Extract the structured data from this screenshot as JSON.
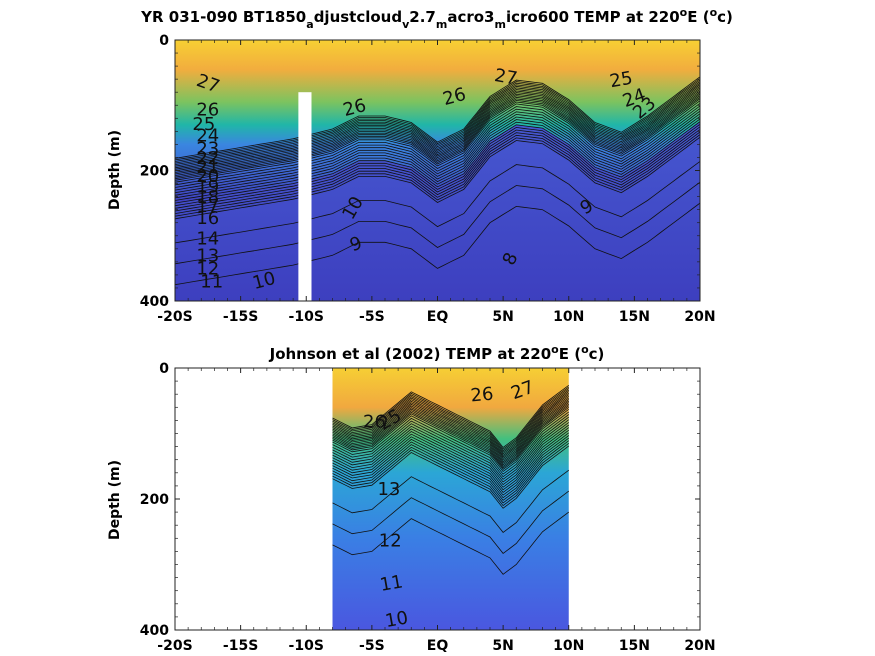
{
  "chart_data": [
    {
      "type": "contour",
      "title_parts": [
        "YR 031-090 BT1850",
        "a",
        "djustcloud",
        "v",
        "2.7",
        "m",
        "acro3",
        "m",
        "icro600 TEMP at 220",
        "o",
        "E (",
        "o",
        "c)"
      ],
      "ylabel": "Depth (m)",
      "x_ticks": [
        "-20S",
        "-15S",
        "-10S",
        "-5S",
        "EQ",
        "5N",
        "10N",
        "15N",
        "20N"
      ],
      "y_ticks": [
        "0",
        "200",
        "400"
      ],
      "xlim": [
        -20,
        20
      ],
      "ylim": [
        0,
        400
      ],
      "thermocline_lat": [
        -20,
        -17,
        -14,
        -11,
        -8,
        -6,
        -4,
        -2,
        0,
        2,
        4,
        6,
        8,
        10,
        12,
        14,
        16,
        18,
        20
      ],
      "thermocline_depth": [
        215,
        205,
        195,
        185,
        170,
        150,
        150,
        160,
        190,
        170,
        120,
        95,
        100,
        125,
        160,
        175,
        150,
        120,
        90
      ],
      "mask": [
        {
          "lat_from": -10.6,
          "lat_to": -9.6,
          "depth_from": 80,
          "depth_to": 400
        }
      ],
      "contour_labels": [
        {
          "v": "27",
          "lat": -17.5,
          "d": 68,
          "rot": 20
        },
        {
          "v": "26",
          "lat": -17.5,
          "d": 108,
          "rot": 0
        },
        {
          "v": "25",
          "lat": -17.8,
          "d": 130,
          "rot": 0
        },
        {
          "v": "24",
          "lat": -17.5,
          "d": 148,
          "rot": 0
        },
        {
          "v": "23",
          "lat": -17.5,
          "d": 168,
          "rot": 0
        },
        {
          "v": "22",
          "lat": -17.5,
          "d": 182,
          "rot": 0
        },
        {
          "v": "21",
          "lat": -17.5,
          "d": 196,
          "rot": 0
        },
        {
          "v": "20",
          "lat": -17.5,
          "d": 210,
          "rot": 0
        },
        {
          "v": "19",
          "lat": -17.5,
          "d": 226,
          "rot": 0
        },
        {
          "v": "18",
          "lat": -17.5,
          "d": 242,
          "rot": 0
        },
        {
          "v": "17",
          "lat": -17.5,
          "d": 256,
          "rot": 0
        },
        {
          "v": "16",
          "lat": -17.5,
          "d": 274,
          "rot": 0
        },
        {
          "v": "14",
          "lat": -17.5,
          "d": 306,
          "rot": 0
        },
        {
          "v": "13",
          "lat": -17.5,
          "d": 332,
          "rot": 0
        },
        {
          "v": "12",
          "lat": -17.5,
          "d": 352,
          "rot": 0
        },
        {
          "v": "11",
          "lat": -17.2,
          "d": 372,
          "rot": 0
        },
        {
          "v": "10",
          "lat": -13.2,
          "d": 370,
          "rot": -15
        },
        {
          "v": "26",
          "lat": -6.3,
          "d": 105,
          "rot": -15
        },
        {
          "v": "10",
          "lat": -6.4,
          "d": 258,
          "rot": -60
        },
        {
          "v": "9",
          "lat": -6.2,
          "d": 314,
          "rot": -20
        },
        {
          "v": "26",
          "lat": 1.3,
          "d": 88,
          "rot": -15
        },
        {
          "v": "27",
          "lat": 5.2,
          "d": 58,
          "rot": 10
        },
        {
          "v": "25",
          "lat": 14.0,
          "d": 62,
          "rot": -10
        },
        {
          "v": "24",
          "lat": 15.0,
          "d": 90,
          "rot": -20
        },
        {
          "v": "23",
          "lat": 15.8,
          "d": 105,
          "rot": -40
        },
        {
          "v": "9",
          "lat": 11.4,
          "d": 257,
          "rot": -30
        },
        {
          "v": "8",
          "lat": 5.6,
          "d": 336,
          "rot": -65
        }
      ]
    },
    {
      "type": "contour",
      "title_parts": [
        "Johnson et al (2002) TEMP at 220",
        "o",
        "E (",
        "o",
        "c)"
      ],
      "ylabel": "Depth (m)",
      "x_ticks": [
        "-20S",
        "-15S",
        "-10S",
        "-5S",
        "EQ",
        "5N",
        "10N",
        "15N",
        "20N"
      ],
      "y_ticks": [
        "0",
        "200",
        "400"
      ],
      "xlim": [
        -20,
        20
      ],
      "ylim": [
        0,
        400
      ],
      "data_extent": [
        -8,
        10
      ],
      "thermocline_lat": [
        -8,
        -6.5,
        -5,
        -3.5,
        -2,
        0,
        2,
        4,
        5,
        6,
        8,
        10
      ],
      "thermocline_depth": [
        110,
        125,
        120,
        95,
        70,
        90,
        110,
        130,
        155,
        140,
        90,
        60
      ],
      "contour_labels": [
        {
          "v": "26",
          "lat": -4.8,
          "d": 83,
          "rot": 0
        },
        {
          "v": "25",
          "lat": -3.6,
          "d": 80,
          "rot": -30
        },
        {
          "v": "13",
          "lat": -3.7,
          "d": 186,
          "rot": 0
        },
        {
          "v": "12",
          "lat": -3.6,
          "d": 265,
          "rot": 0
        },
        {
          "v": "11",
          "lat": -3.5,
          "d": 330,
          "rot": -10
        },
        {
          "v": "10",
          "lat": -3.1,
          "d": 385,
          "rot": -10
        },
        {
          "v": "26",
          "lat": 3.4,
          "d": 42,
          "rot": -5
        },
        {
          "v": "27",
          "lat": 6.5,
          "d": 35,
          "rot": -20
        }
      ]
    }
  ]
}
